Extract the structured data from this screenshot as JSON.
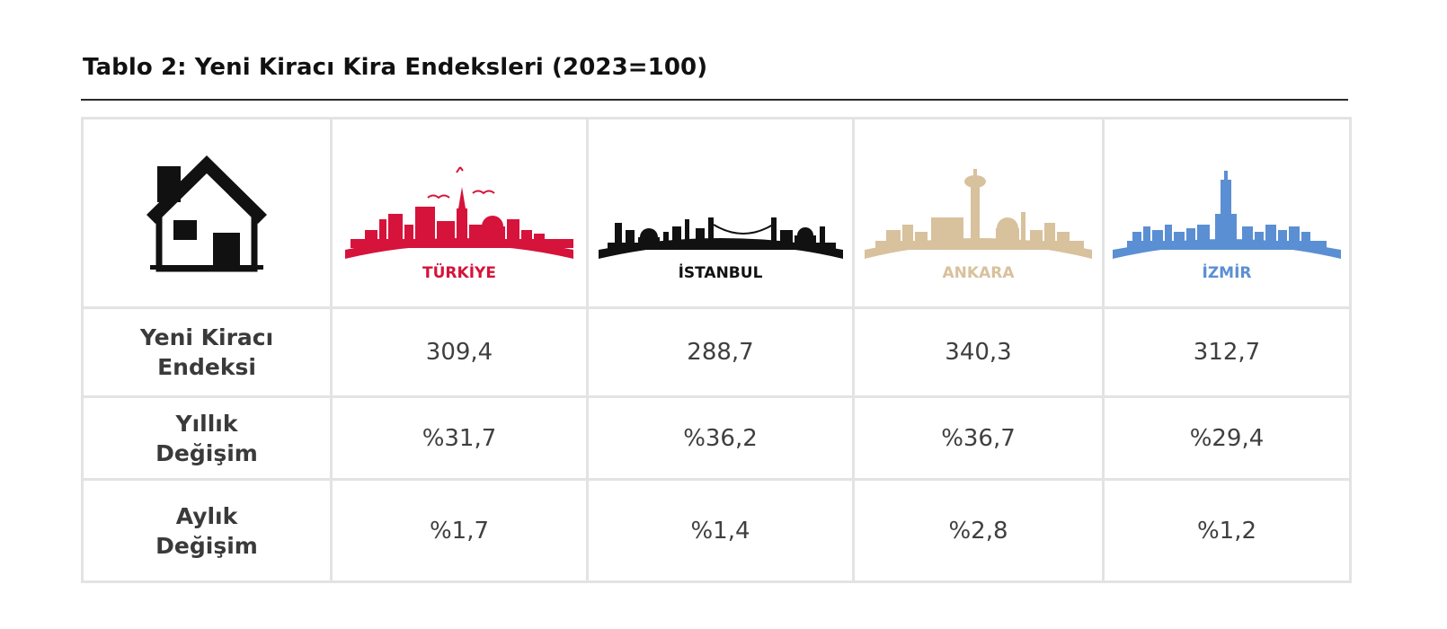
{
  "title": "Tablo 2: Yeni Kiracı Kira Endeksleri (2023=100)",
  "header_icon": "house-icon",
  "cities": [
    {
      "name": "TÜRKİYE",
      "color": "#d6133a"
    },
    {
      "name": "İSTANBUL",
      "color": "#111111"
    },
    {
      "name": "ANKARA",
      "color": "#d8c19d"
    },
    {
      "name": "İZMİR",
      "color": "#5b8fd3"
    }
  ],
  "rows": [
    {
      "label_line1": "Yeni Kiracı",
      "label_line2": "Endeksi",
      "values": [
        "309,4",
        "288,7",
        "340,3",
        "312,7"
      ]
    },
    {
      "label_line1": "Yıllık",
      "label_line2": "Değişim",
      "values": [
        "%31,7",
        "%36,2",
        "%36,7",
        "%29,4"
      ]
    },
    {
      "label_line1": "Aylık",
      "label_line2": "Değişim",
      "values": [
        "%1,7",
        "%1,4",
        "%2,8",
        "%1,2"
      ]
    }
  ]
}
